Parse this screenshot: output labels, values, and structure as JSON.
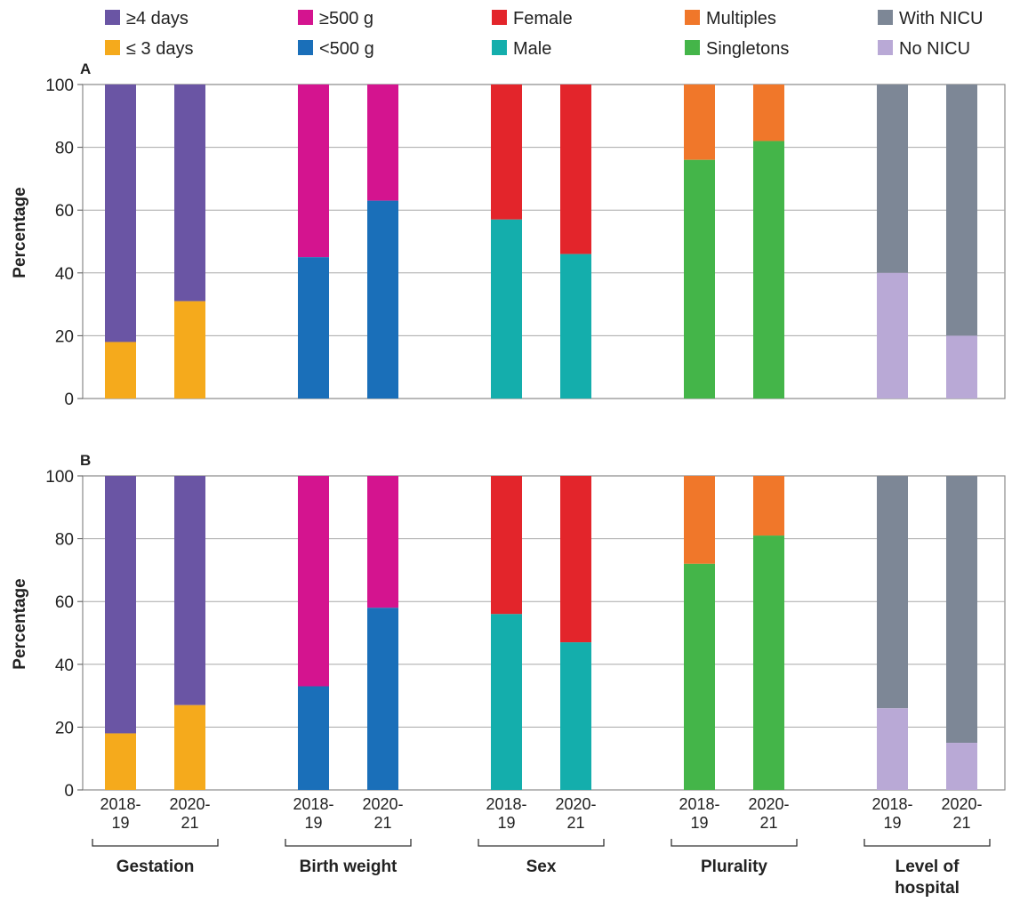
{
  "legend": [
    {
      "label": "≥4 days",
      "color": "#6a55a4"
    },
    {
      "label": "≥500 g",
      "color": "#d4148f"
    },
    {
      "label": "Female",
      "color": "#e3252b"
    },
    {
      "label": "Multiples",
      "color": "#f0772a"
    },
    {
      "label": "With NICU",
      "color": "#7d8796"
    },
    {
      "label": "≤ 3 days",
      "color": "#f5aa1c"
    },
    {
      "label": "<500 g",
      "color": "#1a6fb9"
    },
    {
      "label": "Male",
      "color": "#14aeac"
    },
    {
      "label": "Singletons",
      "color": "#44b549"
    },
    {
      "label": "No NICU",
      "color": "#b9a9d6"
    }
  ],
  "x_categories": [
    {
      "line1": "2018-",
      "line2": "19"
    },
    {
      "line1": "2020-",
      "line2": "21"
    }
  ],
  "groups": [
    {
      "label_lines": [
        "Gestation"
      ]
    },
    {
      "label_lines": [
        "Birth weight"
      ]
    },
    {
      "label_lines": [
        "Sex"
      ]
    },
    {
      "label_lines": [
        "Plurality"
      ]
    },
    {
      "label_lines": [
        "Level of",
        "hospital"
      ]
    }
  ],
  "chart_data": [
    {
      "type": "bar",
      "stacked": true,
      "panel": "A",
      "ylabel": "Percentage",
      "ylim": [
        0,
        100
      ],
      "yticks": [
        0,
        20,
        40,
        60,
        80,
        100
      ],
      "grid": true,
      "groups": [
        {
          "name": "Gestation",
          "bottom_series": "≤ 3 days",
          "top_series": "≥4 days",
          "bottom_color": "#f5aa1c",
          "top_color": "#6a55a4",
          "bottom_values": [
            18,
            31
          ]
        },
        {
          "name": "Birth weight",
          "bottom_series": "<500 g",
          "top_series": "≥500 g",
          "bottom_color": "#1a6fb9",
          "top_color": "#d4148f",
          "bottom_values": [
            45,
            63
          ]
        },
        {
          "name": "Sex",
          "bottom_series": "Male",
          "top_series": "Female",
          "bottom_color": "#14aeac",
          "top_color": "#e3252b",
          "bottom_values": [
            57,
            46
          ]
        },
        {
          "name": "Plurality",
          "bottom_series": "Singletons",
          "top_series": "Multiples",
          "bottom_color": "#44b549",
          "top_color": "#f0772a",
          "bottom_values": [
            76,
            82
          ]
        },
        {
          "name": "Level of hospital",
          "bottom_series": "No NICU",
          "top_series": "With NICU",
          "bottom_color": "#b9a9d6",
          "top_color": "#7d8796",
          "bottom_values": [
            40,
            20
          ]
        }
      ]
    },
    {
      "type": "bar",
      "stacked": true,
      "panel": "B",
      "ylabel": "Percentage",
      "ylim": [
        0,
        100
      ],
      "yticks": [
        0,
        20,
        40,
        60,
        80,
        100
      ],
      "grid": true,
      "groups": [
        {
          "name": "Gestation",
          "bottom_series": "≤ 3 days",
          "top_series": "≥4 days",
          "bottom_color": "#f5aa1c",
          "top_color": "#6a55a4",
          "bottom_values": [
            18,
            27
          ]
        },
        {
          "name": "Birth weight",
          "bottom_series": "<500 g",
          "top_series": "≥500 g",
          "bottom_color": "#1a6fb9",
          "top_color": "#d4148f",
          "bottom_values": [
            33,
            58
          ]
        },
        {
          "name": "Sex",
          "bottom_series": "Male",
          "top_series": "Female",
          "bottom_color": "#14aeac",
          "top_color": "#e3252b",
          "bottom_values": [
            56,
            47
          ]
        },
        {
          "name": "Plurality",
          "bottom_series": "Singletons",
          "top_series": "Multiples",
          "bottom_color": "#44b549",
          "top_color": "#f0772a",
          "bottom_values": [
            72,
            81
          ]
        },
        {
          "name": "Level of hospital",
          "bottom_series": "No NICU",
          "top_series": "With NICU",
          "bottom_color": "#b9a9d6",
          "top_color": "#7d8796",
          "bottom_values": [
            26,
            15
          ]
        }
      ]
    }
  ]
}
